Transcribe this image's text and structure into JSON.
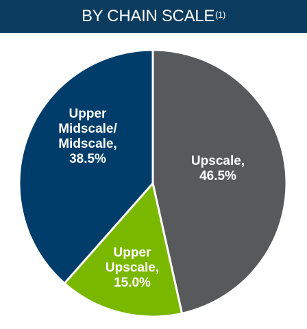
{
  "chart_data": {
    "type": "pie",
    "title": "BY CHAIN SCALE",
    "title_superscript": "(1)",
    "slices": [
      {
        "label": [
          "Upscale,",
          "46.5%"
        ],
        "value": 46.5,
        "color": "#58595b"
      },
      {
        "label": [
          "Upper",
          "Upscale,",
          "15.0%"
        ],
        "value": 15.0,
        "color": "#7ab800"
      },
      {
        "label": [
          "Upper",
          "Midscale/",
          "Midscale,",
          "38.5%"
        ],
        "value": 38.5,
        "color": "#003d6b"
      }
    ]
  },
  "colors": {
    "title_bar": "#0b3b5e",
    "title_text": "#ffffff",
    "slice_border": "#ffffff"
  }
}
